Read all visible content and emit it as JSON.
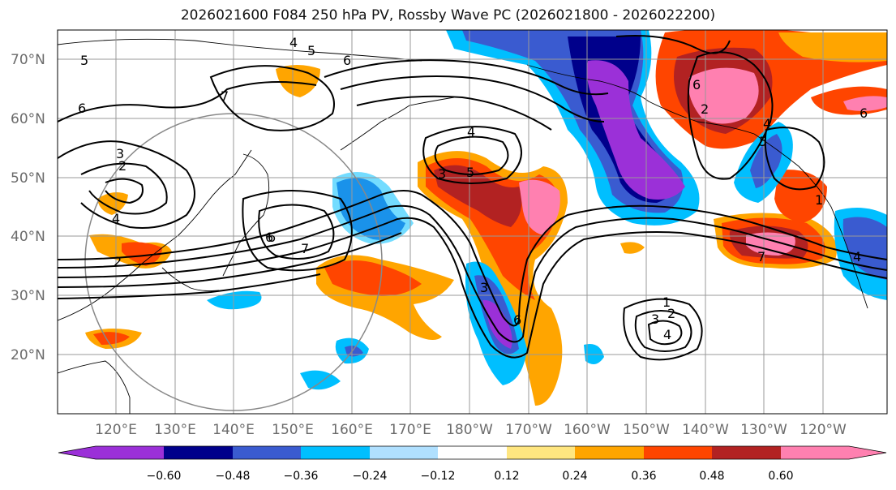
{
  "title": "2026021600 F084 250 hPa PV, Rossby Wave PC (2026021800 - 2026022200)",
  "map": {
    "lat_labels": [
      "70°N",
      "60°N",
      "50°N",
      "40°N",
      "30°N",
      "20°N"
    ],
    "lon_labels": [
      "120°E",
      "130°E",
      "140°E",
      "150°E",
      "160°E",
      "170°E",
      "180°W",
      "170°W",
      "160°W",
      "150°W",
      "140°W",
      "130°W",
      "120°W"
    ],
    "contour_labels": [
      "5",
      "4",
      "5",
      "6",
      "6",
      "7",
      "3",
      "2",
      "4",
      "2",
      "6",
      "6",
      "7",
      "4",
      "5",
      "3",
      "3",
      "6",
      "1",
      "2",
      "3",
      "4",
      "6",
      "2",
      "4",
      "5",
      "6",
      "1",
      "7",
      "4"
    ]
  },
  "colorbar": {
    "ticks": [
      "−0.60",
      "−0.48",
      "−0.36",
      "−0.24",
      "−0.12",
      "0.12",
      "0.24",
      "0.36",
      "0.48",
      "0.60"
    ],
    "colors": [
      "#9b30d8",
      "#00008b",
      "#3a5bd0",
      "#00bfff",
      "#b0e0ff",
      "#ffffff",
      "#ffe680",
      "#ffa500",
      "#ff4500",
      "#b22222",
      "#ff80b0"
    ]
  }
}
